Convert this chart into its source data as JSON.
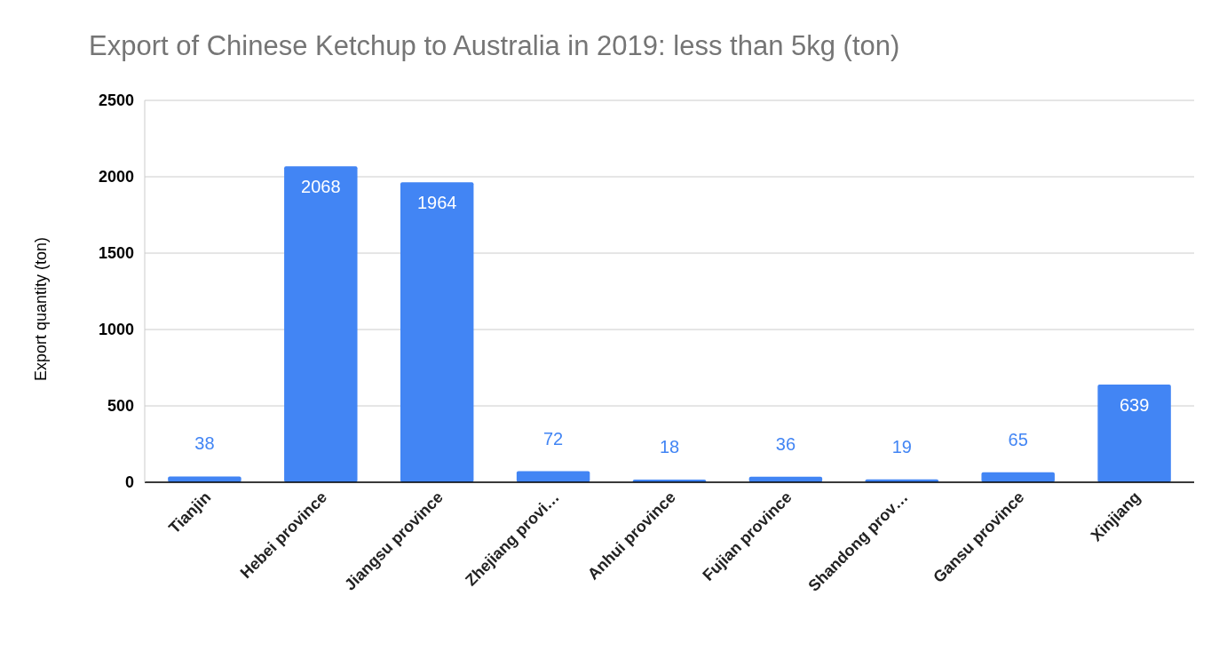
{
  "chart_data": {
    "type": "bar",
    "title": "Export of Chinese Ketchup to Australia in 2019: less than 5kg (ton)",
    "ylabel": "Export quantity (ton)",
    "categories": [
      "Tianjin",
      "Hebei province",
      "Jiangsu province",
      "Zhejiang provi…",
      "Anhui province",
      "Fujian province",
      "Shandong prov…",
      "Gansu province",
      "Xinjiang"
    ],
    "values": [
      38,
      2068,
      1964,
      72,
      18,
      36,
      19,
      65,
      639
    ],
    "color": "#4285f4",
    "ylim": [
      0,
      2500
    ],
    "yticks": [
      0,
      500,
      1000,
      1500,
      2000,
      2500
    ],
    "grid": "y",
    "data_labels": true
  }
}
